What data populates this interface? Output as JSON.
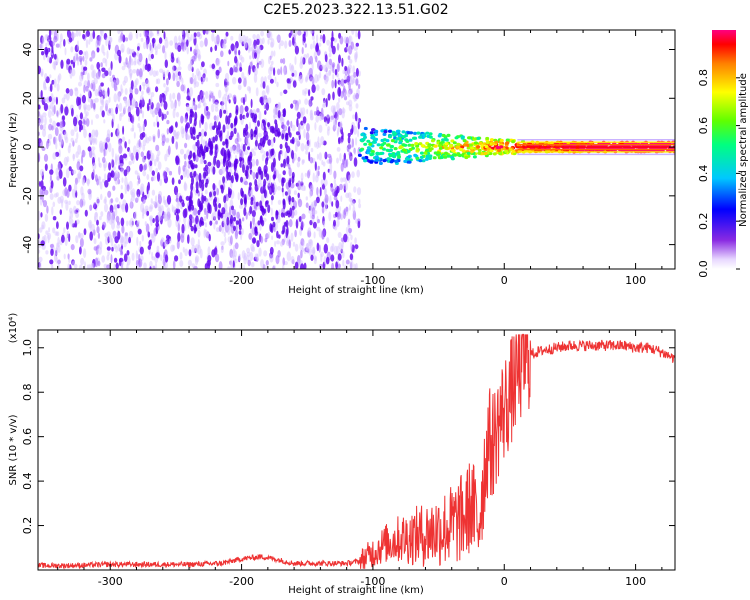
{
  "title": "C2E5.2023.322.13.51.G02",
  "colors": {
    "snr_line": "#ee3333",
    "spectrogram_purple": "#7a1fff",
    "axis": "#000000"
  },
  "chart_data": [
    {
      "type": "heatmap",
      "xlabel": "Height of straight line (km)",
      "ylabel": "Frequency (Hz)",
      "xlim": [
        -355,
        130
      ],
      "ylim": [
        -50,
        48
      ],
      "xticks": [
        -300,
        -200,
        -100,
        0,
        100
      ],
      "xtick_labels": [
        "-300",
        "-200",
        "-100",
        "0",
        "100"
      ],
      "yticks": [
        -40,
        -20,
        0,
        20,
        40
      ],
      "ytick_labels": [
        "-40",
        "-20",
        "0",
        "20",
        "40"
      ],
      "noise_region_x": [
        -355,
        -110
      ],
      "signal_band": {
        "x_start": -110,
        "x_end": 130,
        "freq_center": 0,
        "half_width_at_start": 8,
        "half_width_at_end": 2
      },
      "grid": false,
      "colorbar": {
        "label": "Normalized spectral amplitude",
        "range": [
          0.0,
          1.0
        ],
        "ticks": [
          0.0,
          0.2,
          0.4,
          0.6,
          0.8
        ],
        "tick_labels": [
          "0.0",
          "0.2",
          "0.4",
          "0.6",
          "0.8"
        ]
      }
    },
    {
      "type": "line",
      "xlabel": "Height of straight line (km)",
      "ylabel": "SNR (10 * v/v)",
      "scale_label": "(x10⁴)",
      "xlim": [
        -355,
        130
      ],
      "ylim": [
        0,
        1.08
      ],
      "xticks": [
        -300,
        -200,
        -100,
        0,
        100
      ],
      "xtick_labels": [
        "-300",
        "-200",
        "-100",
        "0",
        "100"
      ],
      "yticks": [
        0.2,
        0.4,
        0.6,
        0.8,
        1.0
      ],
      "ytick_labels": [
        "0.2",
        "0.4",
        "0.6",
        "0.8",
        "1.0"
      ],
      "grid": false,
      "series": [
        {
          "x": [
            -355,
            -330,
            -300,
            -270,
            -240,
            -215,
            -200,
            -185,
            -175,
            -160,
            -140,
            -120,
            -110,
            -100,
            -90,
            -80,
            -70,
            -60,
            -50,
            -40,
            -30,
            -25,
            -20,
            -15,
            -12,
            -10,
            -7,
            -5,
            -2,
            0,
            5,
            10,
            15,
            20,
            30,
            40,
            50,
            60,
            70,
            80,
            90,
            100,
            110,
            120,
            130
          ],
          "y": [
            0.02,
            0.02,
            0.025,
            0.025,
            0.025,
            0.03,
            0.05,
            0.06,
            0.05,
            0.03,
            0.03,
            0.03,
            0.04,
            0.08,
            0.12,
            0.14,
            0.15,
            0.16,
            0.18,
            0.2,
            0.24,
            0.3,
            0.2,
            0.45,
            0.6,
            0.55,
            0.6,
            0.65,
            0.7,
            0.72,
            0.8,
            0.88,
            0.94,
            0.97,
            0.99,
            1.0,
            1.01,
            1.01,
            1.01,
            1.01,
            1.01,
            1.0,
            1.0,
            0.98,
            0.95
          ]
        }
      ]
    }
  ]
}
